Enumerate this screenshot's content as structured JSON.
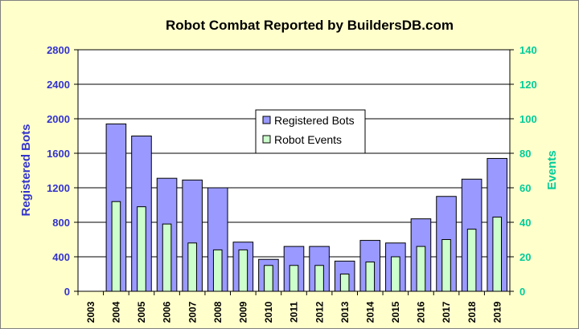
{
  "chart_data": {
    "type": "bar",
    "title": "Robot Combat Reported by BuildersDB.com",
    "categories": [
      "2003",
      "2004",
      "2005",
      "2006",
      "2007",
      "2008",
      "2009",
      "2010",
      "2011",
      "2012",
      "2013",
      "2014",
      "2015",
      "2016",
      "2017",
      "2018",
      "2019"
    ],
    "series": [
      {
        "name": "Registered Bots",
        "axis": "left",
        "color": "#9999ff",
        "values": [
          0,
          1940,
          1800,
          1310,
          1290,
          1200,
          570,
          370,
          520,
          520,
          350,
          590,
          560,
          840,
          1100,
          1300,
          1540
        ]
      },
      {
        "name": "Robot Events",
        "axis": "right",
        "color": "#ccffcc",
        "values": [
          0,
          52,
          49,
          39,
          28,
          24,
          24,
          15,
          15,
          15,
          10,
          17,
          20,
          26,
          30,
          36,
          43
        ]
      }
    ],
    "ylabel": "Registered Bots",
    "y2label": "Events",
    "ylim": [
      0,
      2800
    ],
    "y2lim": [
      0,
      140
    ],
    "yticks": [
      "0",
      "400",
      "800",
      "1200",
      "1600",
      "2000",
      "2400",
      "2800"
    ],
    "y2ticks": [
      "0",
      "20",
      "40",
      "60",
      "80",
      "100",
      "120",
      "140"
    ],
    "grid": true,
    "legend_position": "center"
  },
  "colors": {
    "background": "#ffffcc",
    "plot_area": "#ffffff",
    "left_axis": "#3333cc",
    "right_axis": "#00cc99"
  }
}
